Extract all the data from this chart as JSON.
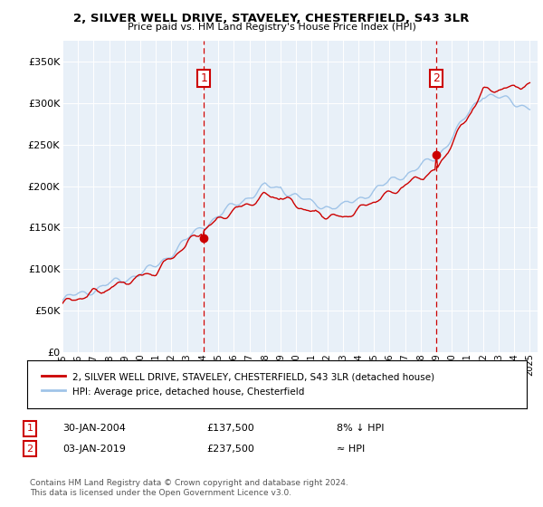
{
  "title": "2, SILVER WELL DRIVE, STAVELEY, CHESTERFIELD, S43 3LR",
  "subtitle": "Price paid vs. HM Land Registry's House Price Index (HPI)",
  "legend_line1": "2, SILVER WELL DRIVE, STAVELEY, CHESTERFIELD, S43 3LR (detached house)",
  "legend_line2": "HPI: Average price, detached house, Chesterfield",
  "annotation1_label": "1",
  "annotation1_date": "30-JAN-2004",
  "annotation1_price": "£137,500",
  "annotation1_hpi": "8% ↓ HPI",
  "annotation2_label": "2",
  "annotation2_date": "03-JAN-2019",
  "annotation2_price": "£237,500",
  "annotation2_hpi": "≈ HPI",
  "footer": "Contains HM Land Registry data © Crown copyright and database right 2024.\nThis data is licensed under the Open Government Licence v3.0.",
  "hpi_color": "#a0c4e8",
  "price_color": "#cc0000",
  "vline_color": "#cc0000",
  "marker_color": "#cc0000",
  "bg_color": "#e8f0f8",
  "annotation_box_color": "#cc0000",
  "ylim": [
    0,
    375000
  ],
  "yticks": [
    0,
    50000,
    100000,
    150000,
    200000,
    250000,
    300000,
    350000
  ],
  "sale_year1": 2004.08,
  "sale_year2": 2019.0,
  "price1": 137500,
  "price2": 237500
}
